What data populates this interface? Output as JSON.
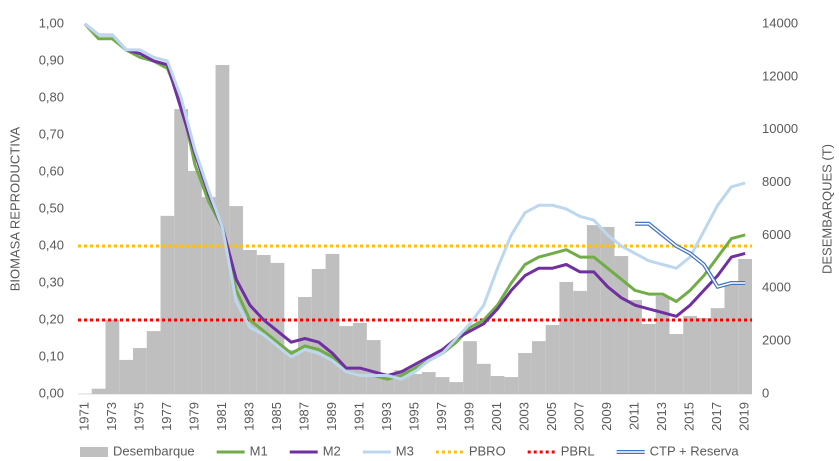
{
  "chart_data": {
    "type": "bar-line",
    "y_label": "BIOMASA REPRODUCTIVA",
    "y2_label": "DESEMBARQUES (T)",
    "categories": [
      "1971",
      null,
      "1973",
      null,
      "1975",
      null,
      "1977",
      null,
      "1979",
      null,
      "1981",
      null,
      "1983",
      null,
      "1985",
      null,
      "1987",
      null,
      "1989",
      null,
      "1991",
      null,
      "1993",
      null,
      "1995",
      null,
      "1997",
      null,
      "1999",
      null,
      "2001",
      null,
      "2003",
      null,
      "2005",
      null,
      "2007",
      null,
      "2009",
      null,
      "2011",
      null,
      "2013",
      null,
      "2015",
      null,
      "2017",
      null,
      "2019"
    ],
    "ylim": [
      0,
      1
    ],
    "yticks": [
      {
        "value": 0,
        "label": "0,00"
      },
      {
        "value": 0.1,
        "label": "0,10"
      },
      {
        "value": 0.2,
        "label": "0,20"
      },
      {
        "value": 0.3,
        "label": "0,30"
      },
      {
        "value": 0.4,
        "label": "0,40"
      },
      {
        "value": 0.5,
        "label": "0,50"
      },
      {
        "value": 0.6,
        "label": "0,60"
      },
      {
        "value": 0.7,
        "label": "0,70"
      },
      {
        "value": 0.8,
        "label": "0,80"
      },
      {
        "value": 0.9,
        "label": "0,90"
      },
      {
        "value": 1,
        "label": "1,00"
      }
    ],
    "y2lim": [
      0,
      14000
    ],
    "y2ticks": [
      0,
      2000,
      4000,
      6000,
      8000,
      10000,
      12000,
      14000
    ],
    "series": [
      {
        "name": "Desembarque",
        "kind": "bar",
        "axis": "y2",
        "color": "#bfbfbf",
        "values": [
          0,
          200,
          2800,
          1290,
          1740,
          2380,
          6740,
          10780,
          8440,
          7450,
          12450,
          7110,
          5450,
          5260,
          4960,
          1660,
          3670,
          4730,
          5300,
          2570,
          2690,
          2040,
          720,
          900,
          760,
          830,
          640,
          450,
          2000,
          1140,
          680,
          640,
          1550,
          2000,
          2610,
          4240,
          3900,
          6390,
          6320,
          5220,
          3560,
          2650,
          3710,
          2270,
          2950,
          2880,
          3250,
          4200,
          5110
        ]
      },
      {
        "name": "M1",
        "kind": "line",
        "color": "#70ad47",
        "values": [
          1.0,
          0.96,
          0.96,
          0.93,
          0.91,
          0.9,
          0.88,
          0.79,
          0.62,
          0.52,
          0.45,
          0.28,
          0.2,
          0.17,
          0.14,
          0.11,
          0.13,
          0.12,
          0.1,
          0.06,
          0.05,
          0.05,
          0.04,
          0.05,
          0.07,
          0.09,
          0.11,
          0.14,
          0.18,
          0.2,
          0.24,
          0.3,
          0.35,
          0.37,
          0.38,
          0.39,
          0.37,
          0.37,
          0.34,
          0.31,
          0.28,
          0.27,
          0.27,
          0.25,
          0.28,
          0.32,
          0.37,
          0.42,
          0.43
        ]
      },
      {
        "name": "M2",
        "kind": "line",
        "color": "#7030a0",
        "values": [
          1.0,
          0.97,
          0.97,
          0.93,
          0.92,
          0.9,
          0.89,
          0.77,
          0.65,
          0.54,
          0.45,
          0.31,
          0.24,
          0.2,
          0.17,
          0.14,
          0.15,
          0.14,
          0.11,
          0.07,
          0.07,
          0.06,
          0.05,
          0.06,
          0.08,
          0.1,
          0.12,
          0.15,
          0.17,
          0.19,
          0.23,
          0.28,
          0.32,
          0.34,
          0.34,
          0.35,
          0.33,
          0.33,
          0.29,
          0.26,
          0.24,
          0.23,
          0.22,
          0.21,
          0.24,
          0.28,
          0.32,
          0.37,
          0.38
        ]
      },
      {
        "name": "M3",
        "kind": "line",
        "color": "#bdd7ee",
        "values": [
          1.0,
          0.97,
          0.97,
          0.93,
          0.93,
          0.91,
          0.9,
          0.8,
          0.66,
          0.55,
          0.45,
          0.25,
          0.18,
          0.16,
          0.13,
          0.1,
          0.12,
          0.11,
          0.09,
          0.06,
          0.05,
          0.05,
          0.05,
          0.04,
          0.06,
          0.09,
          0.11,
          0.15,
          0.19,
          0.24,
          0.34,
          0.43,
          0.49,
          0.51,
          0.51,
          0.5,
          0.48,
          0.47,
          0.43,
          0.4,
          0.38,
          0.36,
          0.35,
          0.34,
          0.37,
          0.44,
          0.51,
          0.56,
          0.57
        ]
      },
      {
        "name": "PBRO",
        "kind": "hline",
        "color": "#ffc000",
        "value": 0.4
      },
      {
        "name": "PBRL",
        "kind": "hline",
        "color": "#ff0000",
        "value": 0.2
      },
      {
        "name": "CTP + Reserva",
        "kind": "double",
        "color": "#4472c4",
        "values": [
          null,
          null,
          null,
          null,
          null,
          null,
          null,
          null,
          null,
          null,
          null,
          null,
          null,
          null,
          null,
          null,
          null,
          null,
          null,
          null,
          null,
          null,
          null,
          null,
          null,
          null,
          null,
          null,
          null,
          null,
          null,
          null,
          null,
          null,
          null,
          null,
          null,
          null,
          null,
          null,
          0.46,
          0.46,
          0.43,
          0.4,
          0.38,
          0.35,
          0.29,
          0.3,
          0.3
        ]
      }
    ]
  }
}
